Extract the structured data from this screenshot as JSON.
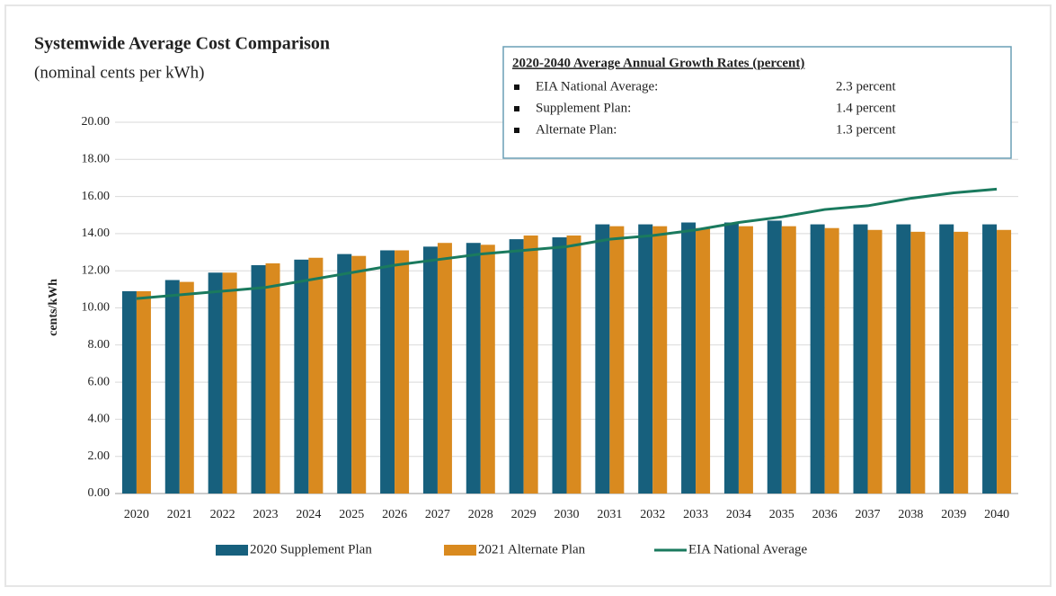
{
  "chart_data": {
    "type": "bar",
    "title": "Systemwide Average Cost Comparison",
    "subtitle": "(nominal cents per kWh)",
    "y_label": "cents/kWh",
    "categories": [
      "2020",
      "2021",
      "2022",
      "2023",
      "2024",
      "2025",
      "2026",
      "2027",
      "2028",
      "2029",
      "2030",
      "2031",
      "2032",
      "2033",
      "2034",
      "2035",
      "2036",
      "2037",
      "2038",
      "2039",
      "2040"
    ],
    "series": [
      {
        "name": "2020 Supplement Plan",
        "type": "bar",
        "color": "#17607d",
        "values": [
          10.9,
          11.5,
          11.9,
          12.3,
          12.6,
          12.9,
          13.1,
          13.3,
          13.5,
          13.7,
          13.8,
          14.5,
          14.5,
          14.6,
          14.6,
          14.7,
          14.5,
          14.5,
          14.5,
          14.5,
          14.5
        ]
      },
      {
        "name": "2021 Alternate Plan",
        "type": "bar",
        "color": "#d98a1f",
        "values": [
          10.9,
          11.4,
          11.9,
          12.4,
          12.7,
          12.8,
          13.1,
          13.5,
          13.4,
          13.9,
          13.9,
          14.4,
          14.4,
          14.3,
          14.4,
          14.4,
          14.3,
          14.2,
          14.1,
          14.1,
          14.2
        ]
      },
      {
        "name": "EIA National Average",
        "type": "line",
        "color": "#1a7a5e",
        "values": [
          10.5,
          10.7,
          10.9,
          11.1,
          11.5,
          11.9,
          12.3,
          12.6,
          12.9,
          13.1,
          13.3,
          13.7,
          13.9,
          14.2,
          14.6,
          14.9,
          15.3,
          15.5,
          15.9,
          16.2,
          16.4
        ]
      }
    ],
    "ylim": [
      0,
      20
    ],
    "yticks": [
      {
        "value": 0,
        "label": "0.00"
      },
      {
        "value": 2,
        "label": "2.00"
      },
      {
        "value": 4,
        "label": "4.00"
      },
      {
        "value": 6,
        "label": "6.00"
      },
      {
        "value": 8,
        "label": "8.00"
      },
      {
        "value": 10,
        "label": "10.00"
      },
      {
        "value": 12,
        "label": "12.00"
      },
      {
        "value": 14,
        "label": "14.00"
      },
      {
        "value": 16,
        "label": "16.00"
      },
      {
        "value": 18,
        "label": "18.00"
      },
      {
        "value": 20,
        "label": "20.00"
      }
    ],
    "grid": true,
    "legend": "bottom",
    "annotation": {
      "title": "2020-2040  Average Annual Growth Rates (percent)",
      "items": [
        {
          "label": "EIA National Average:",
          "value": "2.3 percent"
        },
        {
          "label": "Supplement Plan:",
          "value": "1.4 percent"
        },
        {
          "label": "Alternate Plan:",
          "value": "1.3 percent"
        }
      ]
    }
  }
}
